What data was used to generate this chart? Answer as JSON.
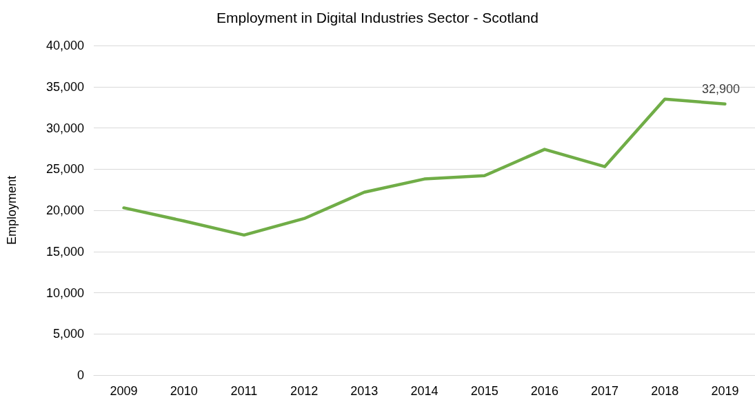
{
  "chart_data": {
    "type": "line",
    "title": "Employment in Digital Industries Sector - Scotland",
    "ylabel": "Employment",
    "categories": [
      "2009",
      "2010",
      "2011",
      "2012",
      "2013",
      "2014",
      "2015",
      "2016",
      "2017",
      "2018",
      "2019"
    ],
    "series": [
      {
        "color": "#70ad47",
        "values": [
          20300,
          18700,
          17000,
          19000,
          22200,
          23800,
          24200,
          27400,
          25300,
          33500,
          32900
        ],
        "value_labels": [
          null,
          null,
          null,
          null,
          null,
          null,
          null,
          null,
          null,
          null,
          "32,900"
        ]
      }
    ],
    "ylim": [
      0,
      40000
    ],
    "yticks": [
      0,
      {
        "value": 5000,
        "label": "5,000"
      },
      {
        "value": 10000,
        "label": "10,000"
      },
      {
        "value": 15000,
        "label": "15,000"
      },
      {
        "value": 20000,
        "label": "20,000"
      },
      {
        "value": 25000,
        "label": "25,000"
      },
      {
        "value": 30000,
        "label": "30,000"
      },
      {
        "value": 35000,
        "label": "35,000"
      },
      {
        "value": 40000,
        "label": "40,000"
      }
    ],
    "grid": "y",
    "marker": "none",
    "line_style": "solid"
  }
}
